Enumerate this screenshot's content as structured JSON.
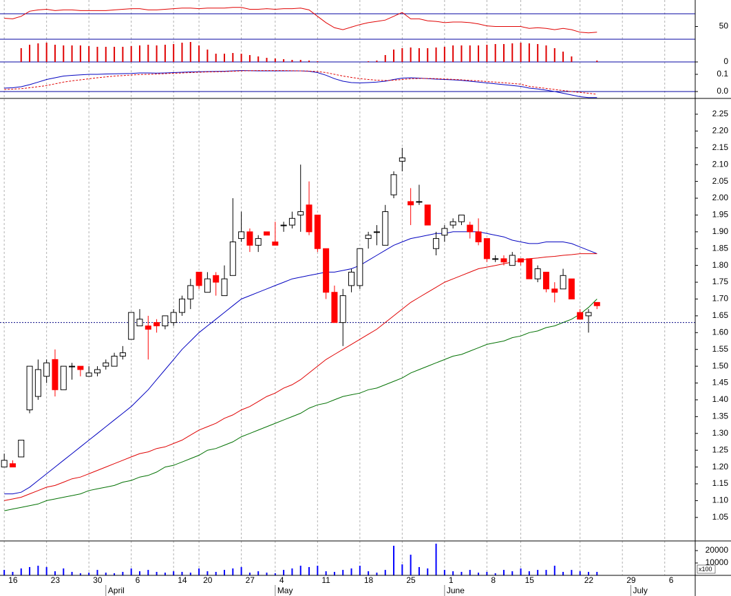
{
  "chart_data": [
    {
      "type": "line",
      "ylim": [
        30,
        91.6
      ],
      "yticks": [
        50
      ],
      "levels": [
        70,
        30
      ],
      "level_color": "#0000a0",
      "series": [
        {
          "color": "#e00000",
          "values": [
            63,
            62,
            66,
            74,
            76,
            77,
            75,
            76,
            76,
            75,
            75,
            75,
            75,
            76,
            77,
            78,
            78,
            76,
            76,
            77,
            78,
            79,
            79,
            78,
            79,
            79,
            79,
            80,
            80,
            77,
            77,
            78,
            77,
            78,
            78,
            79,
            76,
            66,
            56,
            48,
            45,
            49,
            53,
            56,
            58,
            60,
            66,
            72,
            62,
            62,
            59,
            58,
            56,
            57,
            57,
            56,
            54,
            51,
            50,
            50,
            50,
            50,
            47,
            48,
            47,
            45,
            47,
            45,
            41,
            40,
            41
          ]
        }
      ]
    },
    {
      "type": "bar",
      "ylim": [
        0,
        0.033
      ],
      "yticks": [
        0
      ],
      "levels": [
        0
      ],
      "level_color": "#0000a0",
      "color": "#e00000",
      "values": [
        0,
        0,
        0.02,
        0.025,
        0.027,
        0.028,
        0.025,
        0.024,
        0.024,
        0.024,
        0.023,
        0.022,
        0.022,
        0.022,
        0.022,
        0.023,
        0.024,
        0.025,
        0.024,
        0.025,
        0.026,
        0.028,
        0.029,
        0.024,
        0.018,
        0.012,
        0.012,
        0.013,
        0.012,
        0.01,
        0.008,
        0.006,
        0.005,
        0.004,
        0.003,
        0.003,
        0.002,
        0.001,
        0,
        0,
        0,
        0,
        0,
        0.001,
        0.002,
        0.01,
        0.018,
        0.02,
        0.021,
        0.02,
        0.02,
        0.021,
        0.022,
        0.024,
        0.024,
        0.024,
        0.024,
        0.025,
        0.026,
        0.026,
        0.027,
        0.028,
        0.027,
        0.026,
        0.024,
        0.02,
        0.015,
        0.008,
        0,
        0,
        0.002
      ]
    },
    {
      "type": "line",
      "ylim": [
        -0.04,
        0.172
      ],
      "yticks": [
        0.1,
        {
          "value": 0,
          "label": "0.0"
        }
      ],
      "levels": [
        0
      ],
      "level_color": "#0000a0",
      "series": [
        {
          "color": "#0000c0",
          "values": [
            0.02,
            0.022,
            0.028,
            0.04,
            0.055,
            0.07,
            0.08,
            0.09,
            0.094,
            0.097,
            0.1,
            0.1,
            0.102,
            0.103,
            0.104,
            0.105,
            0.108,
            0.108,
            0.107,
            0.108,
            0.11,
            0.112,
            0.114,
            0.115,
            0.116,
            0.117,
            0.118,
            0.12,
            0.122,
            0.121,
            0.12,
            0.12,
            0.12,
            0.12,
            0.12,
            0.12,
            0.118,
            0.11,
            0.095,
            0.075,
            0.06,
            0.052,
            0.05,
            0.052,
            0.055,
            0.06,
            0.07,
            0.078,
            0.08,
            0.078,
            0.075,
            0.072,
            0.07,
            0.068,
            0.065,
            0.06,
            0.055,
            0.05,
            0.045,
            0.04,
            0.035,
            0.03,
            0.02,
            0.015,
            0.008,
            0,
            -0.01,
            -0.02,
            -0.03,
            -0.035,
            -0.035
          ]
        },
        {
          "color": "#e00000",
          "dash": true,
          "values": [
            0.012,
            0.014,
            0.017,
            0.022,
            0.028,
            0.035,
            0.045,
            0.055,
            0.062,
            0.068,
            0.074,
            0.08,
            0.085,
            0.09,
            0.093,
            0.096,
            0.099,
            0.1,
            0.102,
            0.104,
            0.106,
            0.108,
            0.11,
            0.112,
            0.114,
            0.115,
            0.116,
            0.118,
            0.12,
            0.121,
            0.122,
            0.122,
            0.122,
            0.122,
            0.121,
            0.12,
            0.119,
            0.116,
            0.11,
            0.1,
            0.09,
            0.082,
            0.075,
            0.07,
            0.066,
            0.064,
            0.066,
            0.07,
            0.074,
            0.076,
            0.076,
            0.075,
            0.073,
            0.071,
            0.068,
            0.065,
            0.062,
            0.058,
            0.055,
            0.051,
            0.047,
            0.043,
            0.03,
            0.024,
            0.018,
            0.012,
            0.006,
            0,
            -0.005,
            -0.01,
            -0.016
          ]
        }
      ]
    },
    {
      "type": "candlestick",
      "ylim": [
        0.98,
        2.297
      ],
      "up_color": "#ffffff",
      "down_color": "#ff0000",
      "reference_line": 1.63,
      "yticks": [
        1.05,
        {
          "value": 1.1,
          "label": "1.10"
        },
        1.15,
        {
          "value": 1.2,
          "label": "1.20"
        },
        1.25,
        {
          "value": 1.3,
          "label": "1.30"
        },
        1.35,
        {
          "value": 1.4,
          "label": "1.40"
        },
        1.45,
        {
          "value": 1.5,
          "label": "1.50"
        },
        1.55,
        {
          "value": 1.6,
          "label": "1.60"
        },
        1.65,
        {
          "value": 1.7,
          "label": "1.70"
        },
        1.75,
        {
          "value": 1.8,
          "label": "1.80"
        },
        1.85,
        {
          "value": 1.9,
          "label": "1.90"
        },
        1.95,
        {
          "value": 2,
          "label": "2.00"
        },
        2.05,
        {
          "value": 2.1,
          "label": "2.10"
        },
        2.15,
        {
          "value": 2.2,
          "label": "2.20"
        },
        2.25
      ],
      "open": [
        1.2,
        1.21,
        1.23,
        1.37,
        1.41,
        1.47,
        1.52,
        1.43,
        1.5,
        1.5,
        1.47,
        1.48,
        1.5,
        1.5,
        1.53,
        1.58,
        1.62,
        1.62,
        1.63,
        1.62,
        1.63,
        1.66,
        1.7,
        1.78,
        1.72,
        1.77,
        1.71,
        1.77,
        1.88,
        1.9,
        1.86,
        1.9,
        1.87,
        1.92,
        1.92,
        1.95,
        1.98,
        1.95,
        1.85,
        1.72,
        1.63,
        1.74,
        1.74,
        1.88,
        1.9,
        1.86,
        2.01,
        2.11,
        1.99,
        1.99,
        1.98,
        1.85,
        1.89,
        1.92,
        1.93,
        1.92,
        1.9,
        1.88,
        1.82,
        1.82,
        1.8,
        1.82,
        1.82,
        1.76,
        1.78,
        1.73,
        1.73,
        1.76,
        1.66,
        1.65,
        1.69
      ],
      "high": [
        1.24,
        1.22,
        1.28,
        1.5,
        1.52,
        1.52,
        1.55,
        1.5,
        1.51,
        1.5,
        1.5,
        1.5,
        1.52,
        1.54,
        1.56,
        1.66,
        1.67,
        1.65,
        1.64,
        1.65,
        1.67,
        1.71,
        1.76,
        1.78,
        1.78,
        1.78,
        1.8,
        2.0,
        1.96,
        1.91,
        1.89,
        1.9,
        1.93,
        1.93,
        1.96,
        2.1,
        2.05,
        1.95,
        1.85,
        1.74,
        1.73,
        1.79,
        1.85,
        1.9,
        1.92,
        1.98,
        2.08,
        2.15,
        2.03,
        2.04,
        1.98,
        1.9,
        1.92,
        1.94,
        1.95,
        1.93,
        1.94,
        1.88,
        1.83,
        1.83,
        1.84,
        1.82,
        1.82,
        1.8,
        1.78,
        1.75,
        1.79,
        1.76,
        1.67,
        1.67,
        1.69
      ],
      "low": [
        1.2,
        1.2,
        1.23,
        1.36,
        1.4,
        1.45,
        1.41,
        1.43,
        1.46,
        1.47,
        1.47,
        1.47,
        1.49,
        1.5,
        1.52,
        1.58,
        1.62,
        1.52,
        1.6,
        1.61,
        1.62,
        1.65,
        1.67,
        1.73,
        1.72,
        1.71,
        1.71,
        1.77,
        1.87,
        1.84,
        1.84,
        1.89,
        1.86,
        1.9,
        1.91,
        1.9,
        1.89,
        1.84,
        1.7,
        1.63,
        1.56,
        1.72,
        1.73,
        1.85,
        1.86,
        1.86,
        2.0,
        2.08,
        1.92,
        1.98,
        1.92,
        1.83,
        1.87,
        1.91,
        1.92,
        1.88,
        1.86,
        1.81,
        1.81,
        1.8,
        1.8,
        1.8,
        1.76,
        1.75,
        1.72,
        1.69,
        1.73,
        1.7,
        1.64,
        1.6,
        1.67
      ],
      "close": [
        1.22,
        1.2,
        1.28,
        1.5,
        1.49,
        1.51,
        1.43,
        1.5,
        1.5,
        1.49,
        1.48,
        1.49,
        1.51,
        1.53,
        1.54,
        1.66,
        1.64,
        1.61,
        1.62,
        1.65,
        1.66,
        1.7,
        1.74,
        1.74,
        1.76,
        1.75,
        1.76,
        1.87,
        1.9,
        1.86,
        1.88,
        1.89,
        1.86,
        1.92,
        1.94,
        1.96,
        1.9,
        1.85,
        1.72,
        1.63,
        1.71,
        1.78,
        1.85,
        1.89,
        1.9,
        1.96,
        2.07,
        2.12,
        1.98,
        1.99,
        1.92,
        1.88,
        1.91,
        1.93,
        1.95,
        1.9,
        1.87,
        1.82,
        1.82,
        1.81,
        1.83,
        1.81,
        1.76,
        1.79,
        1.73,
        1.72,
        1.77,
        1.7,
        1.64,
        1.66,
        1.68
      ],
      "series": [
        {
          "color": "#0000c0",
          "values": [
            1.12,
            1.12,
            1.125,
            1.14,
            1.16,
            1.18,
            1.2,
            1.22,
            1.24,
            1.26,
            1.28,
            1.3,
            1.32,
            1.34,
            1.36,
            1.38,
            1.405,
            1.43,
            1.46,
            1.49,
            1.52,
            1.55,
            1.575,
            1.6,
            1.62,
            1.64,
            1.66,
            1.68,
            1.7,
            1.71,
            1.72,
            1.73,
            1.74,
            1.75,
            1.76,
            1.765,
            1.77,
            1.775,
            1.78,
            1.78,
            1.785,
            1.79,
            1.8,
            1.815,
            1.83,
            1.845,
            1.86,
            1.87,
            1.88,
            1.885,
            1.89,
            1.895,
            1.895,
            1.9,
            1.9,
            1.9,
            1.9,
            1.895,
            1.89,
            1.885,
            1.875,
            1.87,
            1.865,
            1.865,
            1.87,
            1.87,
            1.87,
            1.865,
            1.855,
            1.845,
            1.835
          ]
        },
        {
          "color": "#e00000",
          "values": [
            1.1,
            1.105,
            1.11,
            1.12,
            1.13,
            1.14,
            1.145,
            1.155,
            1.165,
            1.17,
            1.18,
            1.19,
            1.2,
            1.21,
            1.22,
            1.23,
            1.24,
            1.245,
            1.255,
            1.26,
            1.27,
            1.28,
            1.295,
            1.31,
            1.32,
            1.33,
            1.345,
            1.355,
            1.37,
            1.38,
            1.395,
            1.41,
            1.42,
            1.435,
            1.445,
            1.46,
            1.48,
            1.5,
            1.52,
            1.535,
            1.55,
            1.565,
            1.58,
            1.595,
            1.61,
            1.63,
            1.65,
            1.67,
            1.69,
            1.705,
            1.72,
            1.735,
            1.75,
            1.76,
            1.77,
            1.78,
            1.79,
            1.795,
            1.8,
            1.805,
            1.81,
            1.815,
            1.82,
            1.822,
            1.825,
            1.827,
            1.83,
            1.832,
            1.835,
            1.835,
            1.835
          ]
        },
        {
          "color": "#007000",
          "values": [
            1.07,
            1.075,
            1.08,
            1.085,
            1.09,
            1.1,
            1.105,
            1.11,
            1.115,
            1.12,
            1.13,
            1.135,
            1.14,
            1.145,
            1.155,
            1.16,
            1.17,
            1.175,
            1.185,
            1.2,
            1.205,
            1.215,
            1.225,
            1.235,
            1.25,
            1.255,
            1.265,
            1.275,
            1.29,
            1.3,
            1.31,
            1.32,
            1.33,
            1.34,
            1.35,
            1.36,
            1.375,
            1.385,
            1.39,
            1.4,
            1.41,
            1.415,
            1.42,
            1.43,
            1.435,
            1.445,
            1.455,
            1.465,
            1.48,
            1.49,
            1.5,
            1.51,
            1.52,
            1.53,
            1.535,
            1.545,
            1.555,
            1.565,
            1.57,
            1.575,
            1.585,
            1.59,
            1.6,
            1.605,
            1.615,
            1.62,
            1.63,
            1.64,
            1.655,
            1.675,
            1.7
          ]
        }
      ]
    },
    {
      "type": "bar",
      "ylim": [
        0,
        27800
      ],
      "yticks": [
        10000,
        20000
      ],
      "unit_label": "x100",
      "color": "#0000ff",
      "values": [
        4400,
        2800,
        5600,
        6700,
        7800,
        6700,
        3300,
        5600,
        2800,
        1700,
        2200,
        4400,
        2200,
        1700,
        2800,
        5600,
        3300,
        4400,
        2800,
        2200,
        3300,
        2800,
        2200,
        5600,
        3300,
        2800,
        4400,
        5600,
        6700,
        2200,
        3300,
        2200,
        1700,
        4400,
        5600,
        7800,
        6700,
        7800,
        3300,
        2800,
        4400,
        5600,
        7800,
        3300,
        2200,
        4400,
        23900,
        8900,
        16700,
        6700,
        5600,
        25600,
        4400,
        3300,
        2800,
        4400,
        2200,
        2800,
        1700,
        4400,
        3300,
        5600,
        3300,
        4400,
        4400,
        7800,
        2800,
        4400,
        3300,
        2800,
        2800
      ],
      "xlim": [
        -0.5,
        81.6
      ],
      "xticks": [
        {
          "value": 0,
          "label": "16"
        },
        {
          "value": 5,
          "label": "23"
        },
        {
          "value": 10,
          "label": "30"
        },
        {
          "value": 15,
          "label": "6"
        },
        {
          "value": 20,
          "label": "14"
        },
        {
          "value": 23,
          "label": "20"
        },
        {
          "value": 28,
          "label": "27"
        },
        {
          "value": 32,
          "label": "4"
        },
        {
          "value": 37,
          "label": "11"
        },
        {
          "value": 42,
          "label": "18"
        },
        {
          "value": 47,
          "label": "25"
        },
        {
          "value": 52,
          "label": "1"
        },
        {
          "value": 57,
          "label": "8"
        },
        {
          "value": 61,
          "label": "15"
        },
        {
          "value": 68,
          "label": "22"
        },
        {
          "value": 73,
          "label": "29"
        },
        {
          "value": 78,
          "label": "6"
        }
      ],
      "month_ticks": [
        {
          "value": 12,
          "label": "April"
        },
        {
          "value": 32,
          "label": "May"
        },
        {
          "value": 52,
          "label": "June"
        },
        {
          "value": 74,
          "label": "July"
        }
      ]
    }
  ]
}
